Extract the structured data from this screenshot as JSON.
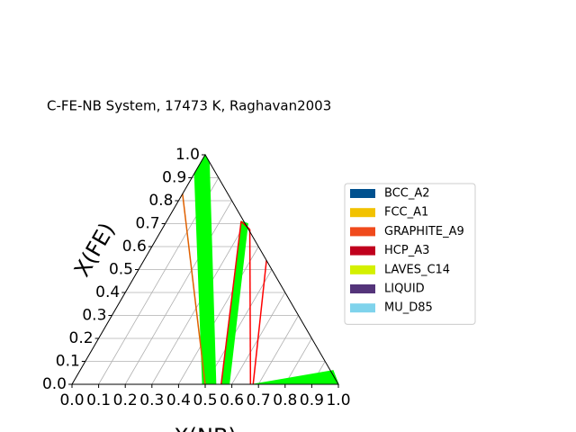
{
  "chart_data": {
    "type": "ternary",
    "title": "C-FE-NB System, 17473 K, Raghavan2003",
    "x_label": "X(NB)",
    "y_label": "X(FE)",
    "xlim": [
      0,
      1
    ],
    "ylim": [
      0,
      1
    ],
    "xticks": [
      {
        "value": 0,
        "label": "0.0"
      },
      0.1,
      0.2,
      0.3,
      0.4,
      0.5,
      0.6,
      0.7,
      0.8,
      0.9,
      {
        "value": 1,
        "label": "1.0"
      }
    ],
    "yticks": [
      {
        "value": 0,
        "label": "0.0"
      },
      0.1,
      0.2,
      0.3,
      0.4,
      0.5,
      0.6,
      0.7,
      0.8,
      0.9,
      {
        "value": 1,
        "label": "1.0"
      }
    ],
    "grid": true,
    "legend_loc": "center right",
    "phases": [
      {
        "name": "BCC_A2",
        "color": "#00518f"
      },
      {
        "name": "FCC_A1",
        "color": "#f2c200"
      },
      {
        "name": "GRAPHITE_A9",
        "color": "#f04a1c"
      },
      {
        "name": "HCP_A3",
        "color": "#c0001d"
      },
      {
        "name": "LAVES_C14",
        "color": "#d4f000"
      },
      {
        "name": "LIQUID",
        "color": "#54347a"
      },
      {
        "name": "MU_D85",
        "color": "#7fd3ec"
      }
    ],
    "regions": [
      {
        "color": "#00ff00",
        "x": [
          0.49,
          0.54,
          0.03,
          0,
          0
        ],
        "y": [
          0,
          0,
          0.97,
          1,
          0.92
        ]
      },
      {
        "color": "#00ff00",
        "x": [
          0.56,
          0.59,
          0.31,
          0.28
        ],
        "y": [
          0,
          0,
          0.7,
          0.71
        ]
      },
      {
        "color": "#00ff00",
        "x": [
          0.68,
          1,
          0.95
        ],
        "y": [
          0,
          0,
          0.06
        ]
      }
    ],
    "lines": [
      {
        "color": "#e06000",
        "x": [
          0,
          0.5
        ],
        "y": [
          0.83,
          0
        ]
      },
      {
        "color": "#ff0000",
        "x": [
          0.33,
          0.67
        ],
        "y": [
          0.675,
          0
        ]
      },
      {
        "color": "#ff0000",
        "x": [
          0.28,
          0.56
        ],
        "y": [
          0.71,
          0
        ]
      },
      {
        "color": "#ff0000",
        "x": [
          0.46,
          0.68
        ],
        "y": [
          0.54,
          0
        ]
      },
      {
        "color": "#ff0000",
        "x": [
          0.28,
          0.33
        ],
        "y": [
          0.71,
          0.675
        ]
      }
    ]
  }
}
